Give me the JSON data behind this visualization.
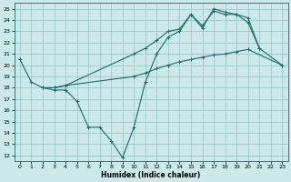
{
  "xlabel": "Humidex (Indice chaleur)",
  "bg_color": "#cce8e8",
  "grid_color": "#99cccc",
  "line_color": "#1a6b6b",
  "xlim": [
    -0.5,
    23.5
  ],
  "ylim": [
    11.5,
    25.5
  ],
  "yticks": [
    12,
    13,
    14,
    15,
    16,
    17,
    18,
    19,
    20,
    21,
    22,
    23,
    24,
    25
  ],
  "xticks": [
    0,
    1,
    2,
    3,
    4,
    5,
    6,
    7,
    8,
    9,
    10,
    11,
    12,
    13,
    14,
    15,
    16,
    17,
    18,
    19,
    20,
    21,
    22,
    23
  ],
  "series1_x": [
    0,
    1,
    2,
    3,
    4,
    5,
    6,
    7,
    8,
    9,
    10,
    11,
    12,
    13,
    14,
    15,
    16,
    17,
    18,
    19,
    20,
    21
  ],
  "series1_y": [
    20.5,
    18.5,
    18.0,
    17.8,
    17.8,
    16.8,
    14.5,
    14.5,
    13.3,
    11.8,
    14.5,
    18.5,
    21.0,
    22.5,
    23.0,
    24.5,
    23.5,
    24.8,
    24.5,
    24.5,
    23.8,
    21.5
  ],
  "series2_x": [
    2,
    3,
    4,
    10,
    11,
    12,
    13,
    14,
    15,
    16,
    17,
    18,
    19,
    20,
    23
  ],
  "series2_y": [
    18.0,
    18.0,
    18.2,
    19.0,
    19.3,
    19.7,
    20.0,
    20.3,
    20.5,
    20.7,
    20.9,
    21.0,
    21.2,
    21.4,
    20.0
  ],
  "series3_x": [
    2,
    3,
    4,
    10,
    11,
    12,
    13,
    14,
    15,
    16,
    17,
    18,
    19,
    20,
    21,
    23
  ],
  "series3_y": [
    18.0,
    18.0,
    18.2,
    21.0,
    21.5,
    22.2,
    23.0,
    23.2,
    24.5,
    23.3,
    25.0,
    24.7,
    24.5,
    24.2,
    21.5,
    20.0
  ]
}
